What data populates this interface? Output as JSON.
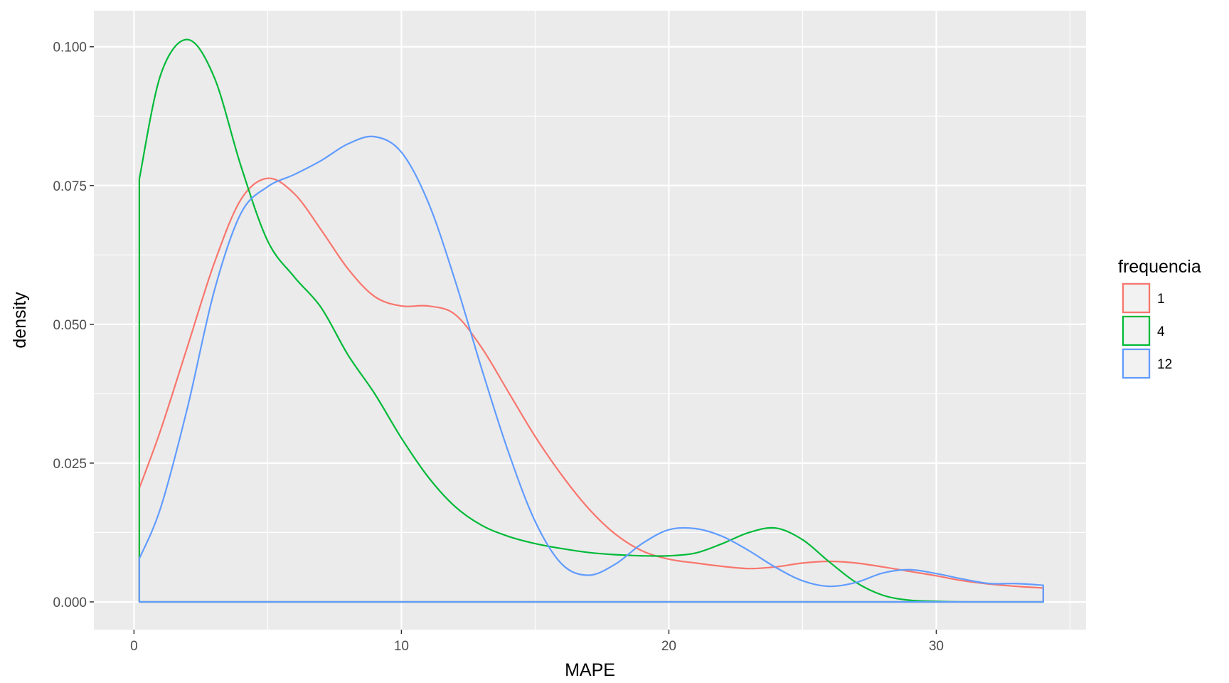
{
  "chart_data": {
    "type": "area",
    "title": "",
    "xlabel": "MAPE",
    "ylabel": "density",
    "xlim": [
      -1.5,
      35.6
    ],
    "ylim": [
      -0.005,
      0.1065
    ],
    "x_ticks": [
      0,
      10,
      20,
      30
    ],
    "x_tick_labels": [
      "0",
      "10",
      "20",
      "30"
    ],
    "y_ticks": [
      0.0,
      0.025,
      0.05,
      0.075,
      0.1
    ],
    "y_tick_labels": [
      "0.000",
      "0.025",
      "0.050",
      "0.075",
      "0.100"
    ],
    "grid": true,
    "legend": {
      "title": "frequencia",
      "position": "right"
    },
    "series": [
      {
        "name": "1",
        "color": "#F8766D",
        "x": [
          0.2,
          1,
          2,
          3,
          4,
          5,
          6,
          7,
          8,
          9,
          10,
          11,
          12,
          13,
          14,
          15,
          16,
          17,
          18,
          19,
          20,
          21,
          22,
          23,
          24,
          25,
          26,
          27,
          28,
          29,
          30,
          31,
          32,
          33,
          34
        ],
        "y": [
          0.0205,
          0.031,
          0.046,
          0.061,
          0.0725,
          0.0763,
          0.0735,
          0.067,
          0.06,
          0.055,
          0.0533,
          0.0533,
          0.0518,
          0.0458,
          0.0378,
          0.0298,
          0.0228,
          0.0168,
          0.0122,
          0.0092,
          0.0077,
          0.007,
          0.0064,
          0.006,
          0.0063,
          0.007,
          0.0073,
          0.007,
          0.0063,
          0.0055,
          0.0047,
          0.0038,
          0.0032,
          0.0028,
          0.0025
        ]
      },
      {
        "name": "4",
        "color": "#00BA38",
        "x": [
          0.2,
          1,
          2,
          3,
          4,
          5,
          6,
          7,
          8,
          9,
          10,
          11,
          12,
          13,
          14,
          15,
          16,
          17,
          18,
          19,
          20,
          21,
          22,
          23,
          24,
          25,
          26,
          27,
          28,
          29,
          30,
          31,
          32,
          33,
          34
        ],
        "y": [
          0.0762,
          0.095,
          0.1013,
          0.0945,
          0.0785,
          0.065,
          0.0585,
          0.053,
          0.0445,
          0.0375,
          0.0295,
          0.0225,
          0.0172,
          0.0138,
          0.0118,
          0.0105,
          0.0096,
          0.0089,
          0.0085,
          0.0083,
          0.0083,
          0.0088,
          0.0105,
          0.0125,
          0.0133,
          0.0112,
          0.0072,
          0.0035,
          0.0012,
          0.0003,
          0.0001,
          0.0,
          0.0,
          0.0,
          0.0
        ]
      },
      {
        "name": "12",
        "color": "#619CFF",
        "x": [
          0.2,
          1,
          2,
          3,
          4,
          5,
          6,
          7,
          8,
          9,
          10,
          11,
          12,
          13,
          14,
          15,
          16,
          17,
          18,
          19,
          20,
          21,
          22,
          23,
          24,
          25,
          26,
          27,
          28,
          29,
          30,
          31,
          32,
          33,
          34
        ],
        "y": [
          0.0078,
          0.017,
          0.035,
          0.056,
          0.07,
          0.0748,
          0.077,
          0.0795,
          0.0825,
          0.0838,
          0.081,
          0.072,
          0.058,
          0.042,
          0.027,
          0.0145,
          0.0068,
          0.0048,
          0.0068,
          0.0105,
          0.013,
          0.0132,
          0.0118,
          0.0092,
          0.0062,
          0.0038,
          0.0028,
          0.0035,
          0.0052,
          0.0058,
          0.0051,
          0.0041,
          0.0033,
          0.0033,
          0.003
        ]
      }
    ]
  }
}
